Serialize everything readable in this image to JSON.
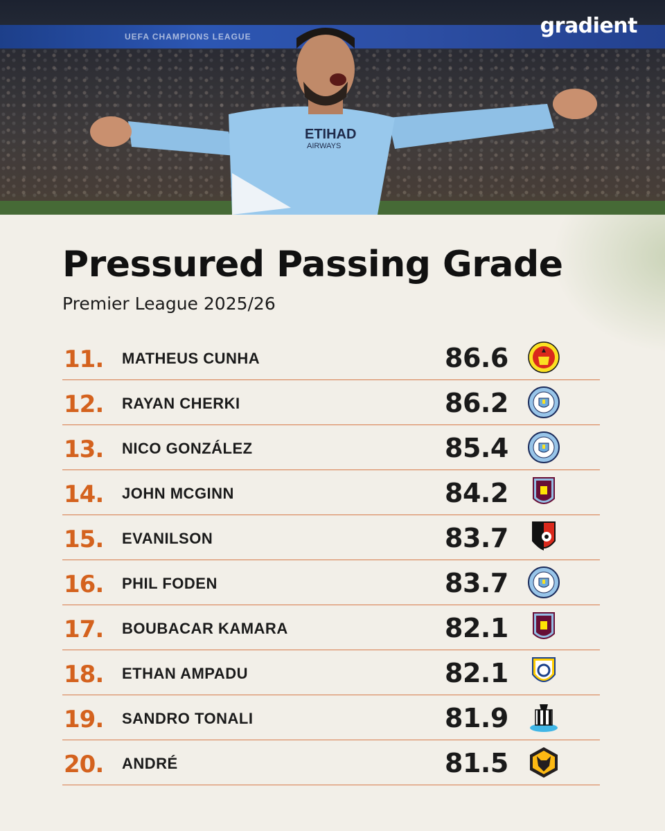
{
  "brand": {
    "logo_text": "gradient"
  },
  "hero": {
    "banner_text": "UEFA CHAMPIONS LEAGUE",
    "shirt_sponsor": "ETIHAD",
    "shirt_sponsor_sub": "AIRWAYS"
  },
  "header": {
    "title": "Pressured Passing Grade",
    "subtitle": "Premier League 2025/26"
  },
  "colors": {
    "rank": "#d4621e",
    "divider": "#d77a4a",
    "text": "#1a1a1a"
  },
  "rows": [
    {
      "rank": "11.",
      "name": "MATHEUS CUNHA",
      "score": "86.6",
      "club_icon": "man-utd-crest-icon"
    },
    {
      "rank": "12.",
      "name": "RAYAN CHERKI",
      "score": "86.2",
      "club_icon": "man-city-crest-icon"
    },
    {
      "rank": "13.",
      "name": "NICO GONZÁLEZ",
      "score": "85.4",
      "club_icon": "man-city-crest-icon"
    },
    {
      "rank": "14.",
      "name": "JOHN MCGINN",
      "score": "84.2",
      "club_icon": "aston-villa-crest-icon"
    },
    {
      "rank": "15.",
      "name": "EVANILSON",
      "score": "83.7",
      "club_icon": "bournemouth-crest-icon"
    },
    {
      "rank": "16.",
      "name": "PHIL FODEN",
      "score": "83.7",
      "club_icon": "man-city-crest-icon"
    },
    {
      "rank": "17.",
      "name": "BOUBACAR KAMARA",
      "score": "82.1",
      "club_icon": "aston-villa-crest-icon"
    },
    {
      "rank": "18.",
      "name": "ETHAN AMPADU",
      "score": "82.1",
      "club_icon": "leeds-crest-icon"
    },
    {
      "rank": "19.",
      "name": "SANDRO TONALI",
      "score": "81.9",
      "club_icon": "newcastle-crest-icon"
    },
    {
      "rank": "20.",
      "name": "ANDRÉ",
      "score": "81.5",
      "club_icon": "wolves-crest-icon"
    }
  ]
}
